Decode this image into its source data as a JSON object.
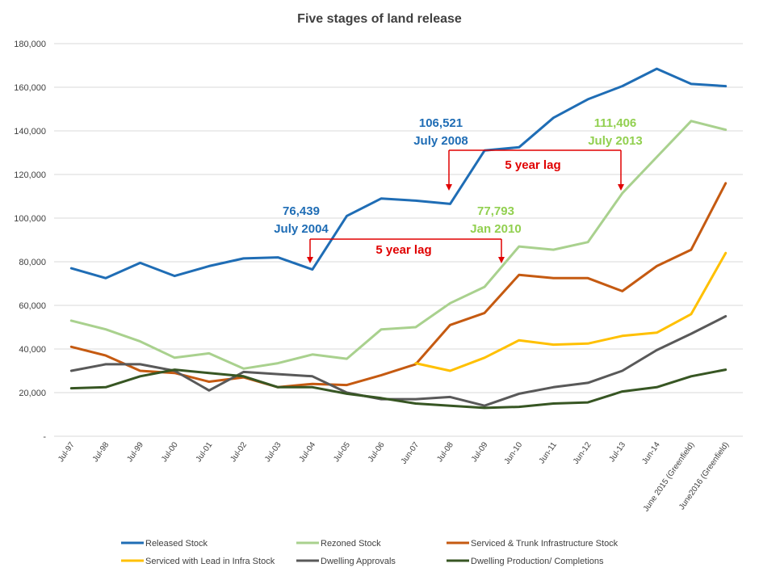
{
  "chart_data": {
    "type": "line",
    "title": "Five stages of land release",
    "xlabel": "",
    "ylabel": "",
    "ylim": [
      0,
      180000
    ],
    "yticks": [
      0,
      20000,
      40000,
      60000,
      80000,
      100000,
      120000,
      140000,
      160000,
      180000
    ],
    "ytick_labels": [
      "-",
      "20,000",
      "40,000",
      "60,000",
      "80,000",
      "100,000",
      "120,000",
      "140,000",
      "160,000",
      "180,000"
    ],
    "grid": true,
    "legend_position": "bottom",
    "categories": [
      "Jul-97",
      "Jul-98",
      "Jul-99",
      "Jul-00",
      "Jul-01",
      "Jul-02",
      "Jul-03",
      "Jul-04",
      "Jul-05",
      "Jul-06",
      "Jun-07",
      "Jul-08",
      "Jul-09",
      "Jun-10",
      "Jun-11",
      "Jun-12",
      "Jul-13",
      "Jun-14",
      "June 2015 (Greenfield)",
      "June2016 (Greenfield)"
    ],
    "series": [
      {
        "name": "Released Stock",
        "color": "#1f6db5",
        "values": [
          77000,
          72500,
          79500,
          73500,
          78000,
          81500,
          82000,
          76439,
          101000,
          109000,
          108000,
          106521,
          131000,
          132500,
          146000,
          154500,
          160500,
          168500,
          161500,
          160500
        ]
      },
      {
        "name": "Rezoned Stock",
        "color": "#a9d18e",
        "values": [
          53000,
          49000,
          43500,
          36000,
          38000,
          31000,
          33500,
          37500,
          35500,
          49000,
          50000,
          61000,
          68500,
          87000,
          85500,
          89000,
          111406,
          128000,
          144500,
          140500
        ]
      },
      {
        "name": "Serviced & Trunk Infrastructure Stock",
        "color": "#c55a11",
        "values": [
          41000,
          37000,
          30000,
          29000,
          25000,
          27000,
          22500,
          24000,
          23500,
          28000,
          33000,
          51000,
          56500,
          74000,
          72500,
          72500,
          66500,
          78000,
          85500,
          116000
        ]
      },
      {
        "name": "Serviced with Lead in Infra Stock",
        "color": "#ffc000",
        "values": [
          null,
          null,
          null,
          null,
          null,
          null,
          null,
          null,
          null,
          null,
          33500,
          30000,
          36000,
          44000,
          42000,
          42500,
          46000,
          47500,
          56000,
          84000
        ]
      },
      {
        "name": "Dwelling Approvals",
        "color": "#595959",
        "values": [
          30000,
          33000,
          33000,
          30000,
          21000,
          29500,
          28500,
          27500,
          20000,
          17000,
          17000,
          18000,
          14000,
          19500,
          22500,
          24500,
          30000,
          39500,
          47000,
          55000
        ]
      },
      {
        "name": "Dwelling Production/ Completions",
        "color": "#375623",
        "values": [
          22000,
          22500,
          27500,
          30500,
          29000,
          27500,
          22500,
          22500,
          19500,
          17500,
          15000,
          14000,
          13000,
          13500,
          15000,
          15500,
          20500,
          22500,
          27500,
          30500
        ]
      }
    ],
    "annotations": [
      {
        "value": "76,439",
        "date": "July 2004",
        "color": "#1f6db5"
      },
      {
        "value": "106,521",
        "date": "July 2008",
        "color": "#1f6db5"
      },
      {
        "value": "77,793",
        "date": "Jan 2010",
        "color": "#92d050"
      },
      {
        "value": "111,406",
        "date": "July 2013",
        "color": "#92d050"
      }
    ],
    "lag_labels": [
      "5 year lag",
      "5 year lag"
    ],
    "lag_color": "#e00000",
    "gridline_color": "#d9d9d9"
  }
}
